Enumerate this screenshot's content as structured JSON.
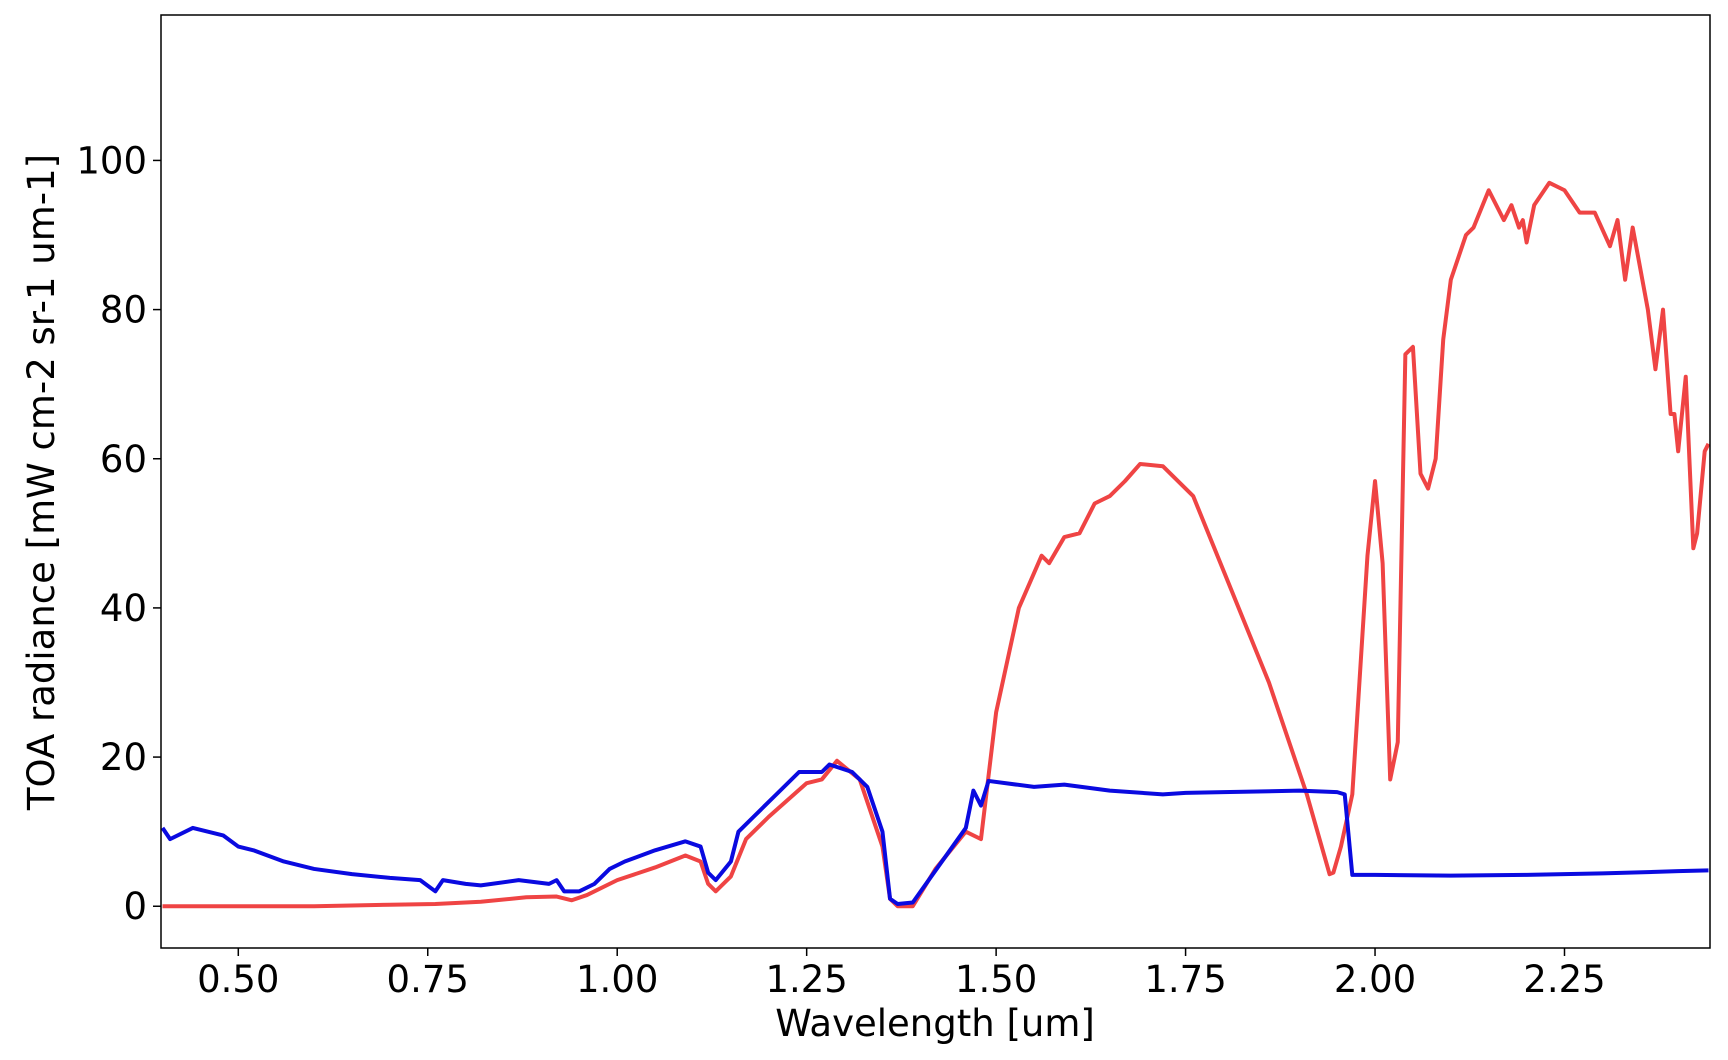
{
  "chart_data": {
    "type": "line",
    "xlabel": "Wavelength [um]",
    "ylabel": "TOA radiance [mW cm-2 sr-1 um-1]",
    "xlim": [
      0.398,
      2.442
    ],
    "ylim": [
      -5.6,
      119.5
    ],
    "xticks": [
      {
        "value": 0.5,
        "label": "0.50"
      },
      {
        "value": 0.75,
        "label": "0.75"
      },
      {
        "value": 1.0,
        "label": "1.00"
      },
      {
        "value": 1.25,
        "label": "1.25"
      },
      {
        "value": 1.5,
        "label": "1.50"
      },
      {
        "value": 1.75,
        "label": "1.75"
      },
      {
        "value": 2.0,
        "label": "2.00"
      },
      {
        "value": 2.25,
        "label": "2.25"
      }
    ],
    "yticks": [
      0,
      20,
      40,
      60,
      80,
      100
    ],
    "grid": false,
    "series": [
      {
        "color": "#ef4444",
        "x": [
          0.4,
          0.6,
          0.7,
          0.76,
          0.82,
          0.88,
          0.92,
          0.94,
          0.96,
          1.0,
          1.05,
          1.09,
          1.11,
          1.12,
          1.13,
          1.15,
          1.17,
          1.2,
          1.25,
          1.27,
          1.29,
          1.32,
          1.35,
          1.36,
          1.37,
          1.39,
          1.42,
          1.46,
          1.48,
          1.5,
          1.53,
          1.56,
          1.57,
          1.59,
          1.61,
          1.63,
          1.65,
          1.67,
          1.69,
          1.72,
          1.76,
          1.8,
          1.86,
          1.91,
          1.94,
          1.945,
          1.955,
          1.97,
          1.99,
          2.0,
          2.01,
          2.02,
          2.03,
          2.04,
          2.05,
          2.06,
          2.07,
          2.08,
          2.09,
          2.1,
          2.12,
          2.13,
          2.15,
          2.17,
          2.18,
          2.19,
          2.195,
          2.2,
          2.21,
          2.23,
          2.25,
          2.27,
          2.29,
          2.31,
          2.32,
          2.33,
          2.34,
          2.36,
          2.37,
          2.38,
          2.39,
          2.395,
          2.4,
          2.41,
          2.42,
          2.425,
          2.435,
          2.44
        ],
        "values": [
          0,
          0,
          0.2,
          0.3,
          0.6,
          1.2,
          1.3,
          0.8,
          1.5,
          3.5,
          5.2,
          6.8,
          6,
          3,
          2,
          4,
          9,
          12,
          16.5,
          17,
          19.5,
          17,
          8,
          1,
          0,
          0,
          5,
          10,
          9,
          26,
          40,
          47,
          46,
          49.5,
          50,
          54,
          55,
          57,
          59.3,
          59,
          55,
          45,
          30,
          15,
          4.3,
          4.5,
          8,
          15,
          47,
          57,
          46,
          17,
          22,
          74,
          75,
          58,
          56,
          60,
          76,
          84,
          90,
          91,
          96,
          92,
          94,
          91,
          92,
          89,
          94,
          97,
          96,
          93,
          93,
          88.5,
          92,
          84,
          91,
          80,
          72,
          80,
          66,
          66,
          61,
          71,
          48,
          50,
          61,
          62
        ]
      },
      {
        "color": "#0a0ae0",
        "x": [
          0.4,
          0.41,
          0.44,
          0.48,
          0.5,
          0.52,
          0.56,
          0.6,
          0.65,
          0.7,
          0.74,
          0.76,
          0.77,
          0.8,
          0.82,
          0.87,
          0.91,
          0.92,
          0.93,
          0.95,
          0.97,
          0.99,
          1.01,
          1.05,
          1.09,
          1.11,
          1.12,
          1.13,
          1.15,
          1.16,
          1.18,
          1.21,
          1.24,
          1.27,
          1.28,
          1.31,
          1.33,
          1.35,
          1.36,
          1.37,
          1.39,
          1.46,
          1.47,
          1.48,
          1.49,
          1.55,
          1.59,
          1.65,
          1.72,
          1.75,
          1.8,
          1.9,
          1.95,
          1.96,
          1.97,
          2.0,
          2.1,
          2.2,
          2.3,
          2.4,
          2.44
        ],
        "values": [
          10.5,
          9,
          10.5,
          9.5,
          8,
          7.5,
          6,
          5,
          4.3,
          3.8,
          3.5,
          2,
          3.5,
          3,
          2.8,
          3.5,
          3,
          3.5,
          2,
          2,
          3,
          5,
          6,
          7.5,
          8.7,
          8,
          4.5,
          3.5,
          6,
          10,
          12,
          15,
          18,
          18,
          19,
          18,
          16,
          10,
          1,
          0.3,
          0.5,
          10.5,
          15.5,
          13.5,
          16.8,
          16,
          16.3,
          15.5,
          15,
          15.2,
          15.3,
          15.5,
          15.3,
          15,
          4.2,
          4.2,
          4.1,
          4.2,
          4.4,
          4.7,
          4.8
        ]
      }
    ]
  }
}
